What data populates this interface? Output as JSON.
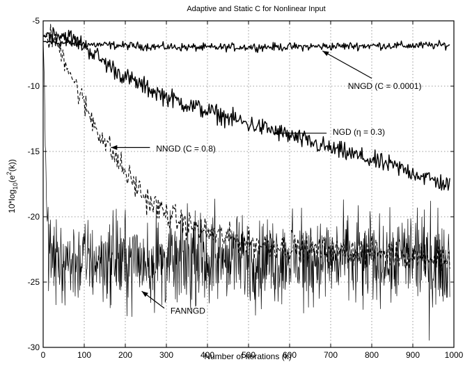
{
  "chart_data": {
    "type": "line",
    "title": "Adaptive and Static C for Nonlinear Input",
    "xlabel": "Number of iterations (k)",
    "ylabel_parts": [
      "10*log",
      "10",
      "(e",
      "2",
      "(k))"
    ],
    "xlim": [
      0,
      1000
    ],
    "ylim": [
      -30,
      -5
    ],
    "x_ticks": [
      0,
      100,
      200,
      300,
      400,
      500,
      600,
      700,
      800,
      900,
      1000
    ],
    "y_ticks": [
      -30,
      -25,
      -20,
      -15,
      -10,
      -5
    ],
    "grid": true,
    "series": [
      {
        "name": "NNGD (C = 0.0001)",
        "style": "solid",
        "noise": 0.15,
        "x": [
          0,
          50,
          100,
          200,
          300,
          400,
          500,
          600,
          700,
          800,
          900,
          990
        ],
        "y": [
          -6.6,
          -6.7,
          -6.8,
          -6.9,
          -7.0,
          -7.05,
          -7.0,
          -7.0,
          -6.95,
          -6.9,
          -6.9,
          -6.85
        ]
      },
      {
        "name": "NGD (η = 0.3)",
        "style": "solid",
        "noise": 0.35,
        "x": [
          0,
          30,
          60,
          100,
          150,
          200,
          250,
          300,
          350,
          400,
          450,
          500,
          550,
          600,
          650,
          700,
          750,
          800,
          850,
          900,
          950,
          990
        ],
        "y": [
          -6.1,
          -6.0,
          -6.2,
          -6.9,
          -8.2,
          -9.3,
          -10.1,
          -10.8,
          -11.4,
          -11.9,
          -12.4,
          -12.9,
          -13.3,
          -13.8,
          -14.3,
          -14.8,
          -15.2,
          -15.7,
          -16.1,
          -16.6,
          -17.2,
          -17.6
        ]
      },
      {
        "name": "NNGD (C = 0.8)",
        "style": "dashed",
        "noise": 0.5,
        "x": [
          0,
          20,
          40,
          60,
          80,
          100,
          130,
          160,
          200,
          250,
          300,
          350,
          400,
          450,
          500,
          600,
          700,
          800,
          900,
          990
        ],
        "y": [
          -6.2,
          -6.3,
          -7.0,
          -8.4,
          -10.0,
          -11.4,
          -13.2,
          -14.7,
          -16.6,
          -18.6,
          -19.8,
          -20.6,
          -21.2,
          -21.6,
          -22.0,
          -22.4,
          -22.6,
          -22.7,
          -23.0,
          -23.2
        ]
      },
      {
        "name": "FANNGD",
        "style": "solid",
        "noise": 1.6,
        "x": [
          0,
          2,
          5,
          8,
          12,
          20,
          40,
          100,
          200,
          300,
          400,
          500,
          600,
          700,
          800,
          900,
          990
        ],
        "y": [
          -6.5,
          -8.5,
          -14.0,
          -19.0,
          -22.0,
          -23.3,
          -23.4,
          -23.3,
          -23.3,
          -23.4,
          -23.3,
          -23.3,
          -23.3,
          -23.2,
          -23.3,
          -23.2,
          -23.3
        ]
      }
    ],
    "annotations": [
      {
        "text": "NNGD (C = 0.0001)",
        "label_at": [
          742,
          -10.0
        ],
        "arrow_from": [
          800,
          -9.4
        ],
        "arrow_to": [
          680,
          -7.3
        ]
      },
      {
        "text": "NGD (η = 0.3)",
        "label_at": [
          705,
          -13.5
        ],
        "arrow_from": [
          690,
          -13.6
        ],
        "arrow_to": [
          560,
          -13.6
        ]
      },
      {
        "text": "NNGD (C = 0.8)",
        "label_at": [
          275,
          -14.8
        ],
        "arrow_from": [
          260,
          -14.7
        ],
        "arrow_to": [
          165,
          -14.7
        ]
      },
      {
        "text": "FANNGD",
        "label_at": [
          310,
          -27.2
        ],
        "arrow_from": [
          295,
          -27.0
        ],
        "arrow_to": [
          240,
          -25.7
        ]
      }
    ]
  }
}
